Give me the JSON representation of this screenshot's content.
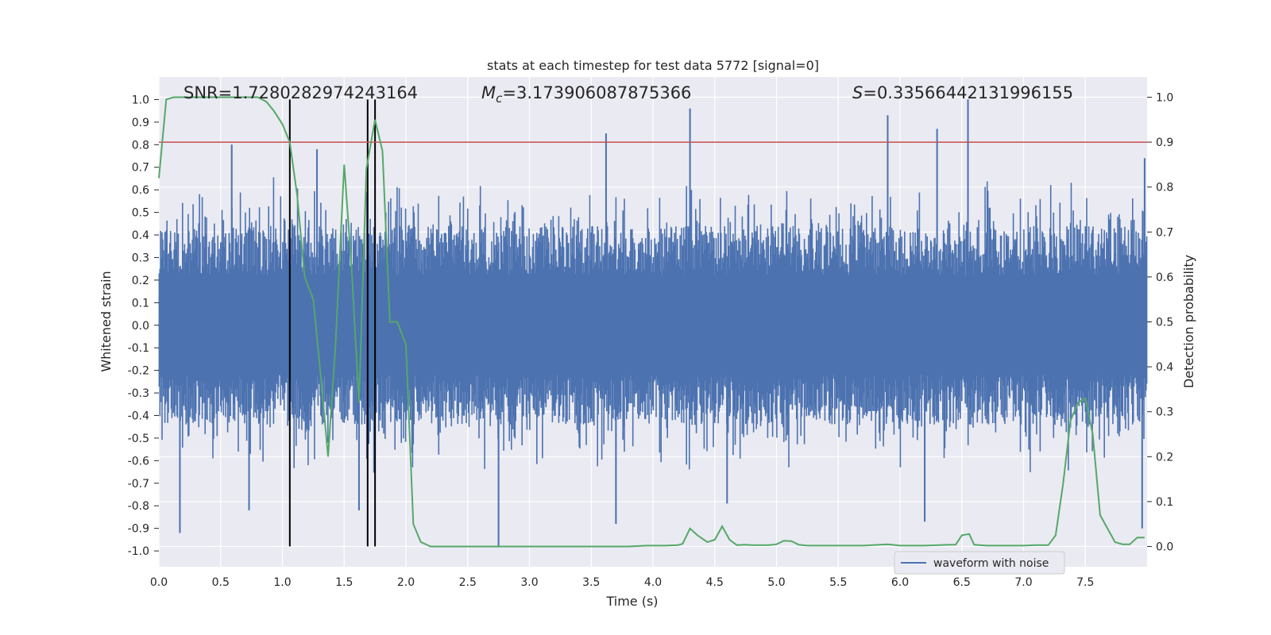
{
  "chart_data": {
    "type": "line",
    "title": "stats at each timestep for test data 5772 [signal=0]",
    "xlabel": "Time (s)",
    "ylabel_left": "Whitened strain",
    "ylabel_right": "Detection probability",
    "xlim": [
      0.0,
      8.0
    ],
    "ylim_left": [
      -1.07,
      1.1
    ],
    "ylim_right": [
      -0.045,
      1.045
    ],
    "xticks": [
      "0.0",
      "0.5",
      "1.0",
      "1.5",
      "2.0",
      "2.5",
      "3.0",
      "3.5",
      "4.0",
      "4.5",
      "5.0",
      "5.5",
      "6.0",
      "6.5",
      "7.0",
      "7.5"
    ],
    "yticks_left": [
      "1.0",
      "0.9",
      "0.8",
      "0.7",
      "0.6",
      "0.5",
      "0.4",
      "0.3",
      "0.2",
      "0.1",
      "0.0",
      "-0.1",
      "-0.2",
      "-0.3",
      "-0.4",
      "-0.5",
      "-0.6",
      "-0.7",
      "-0.8",
      "-0.9",
      "-1.0"
    ],
    "yticks_right": [
      "1.0",
      "0.9",
      "0.8",
      "0.7",
      "0.6",
      "0.5",
      "0.4",
      "0.3",
      "0.2",
      "0.1",
      "0.0"
    ],
    "annotations": {
      "snr": "SNR=1.7280282974243164",
      "mc_symbol": "M",
      "mc_sub": "c",
      "mc_value": "=3.173906087875366",
      "s_symbol": "S",
      "s_value": "=0.33566442131996155"
    },
    "threshold": {
      "value_right": 0.9,
      "color": "#c44e52"
    },
    "vertical_markers": [
      1.06,
      1.69,
      1.75
    ],
    "legend": {
      "label": "waveform with noise",
      "position": "lower-center-right"
    },
    "series": [
      {
        "name": "waveform with noise",
        "axis": "left",
        "color": "#4c72b0",
        "style": "dense noise, envelope roughly ±0.4 to ±0.6 with peaks",
        "peaks": [
          {
            "x": 0.17,
            "y": -0.92
          },
          {
            "x": 0.59,
            "y": 0.8
          },
          {
            "x": 0.73,
            "y": -0.82
          },
          {
            "x": 1.28,
            "y": 0.78
          },
          {
            "x": 1.62,
            "y": -0.82
          },
          {
            "x": 2.75,
            "y": -0.98
          },
          {
            "x": 3.62,
            "y": 0.85
          },
          {
            "x": 3.7,
            "y": -0.88
          },
          {
            "x": 4.3,
            "y": 0.96
          },
          {
            "x": 4.6,
            "y": -0.79
          },
          {
            "x": 5.9,
            "y": 0.93
          },
          {
            "x": 6.3,
            "y": 0.87
          },
          {
            "x": 6.2,
            "y": -0.87
          },
          {
            "x": 6.55,
            "y": 1.0
          },
          {
            "x": 7.98,
            "y": 0.74
          },
          {
            "x": 7.96,
            "y": -0.9
          }
        ]
      },
      {
        "name": "detection probability",
        "axis": "right",
        "color": "#55a868",
        "x": [
          0.0,
          0.06,
          0.12,
          0.2,
          0.3,
          0.4,
          0.5,
          0.6,
          0.7,
          0.8,
          0.87,
          0.93,
          1.0,
          1.06,
          1.12,
          1.18,
          1.25,
          1.31,
          1.37,
          1.43,
          1.5,
          1.56,
          1.62,
          1.68,
          1.75,
          1.81,
          1.87,
          1.93,
          2.0,
          2.06,
          2.12,
          2.2,
          2.4,
          2.6,
          2.8,
          3.0,
          3.2,
          3.4,
          3.5,
          3.6,
          3.8,
          3.95,
          4.1,
          4.2,
          4.24,
          4.3,
          4.36,
          4.44,
          4.5,
          4.56,
          4.62,
          4.68,
          4.74,
          4.8,
          4.86,
          4.94,
          5.0,
          5.06,
          5.12,
          5.18,
          5.25,
          5.35,
          5.45,
          5.55,
          5.7,
          5.9,
          6.0,
          6.2,
          6.4,
          6.45,
          6.5,
          6.56,
          6.6,
          6.7,
          6.8,
          6.9,
          7.0,
          7.1,
          7.2,
          7.26,
          7.32,
          7.38,
          7.44,
          7.5,
          7.56,
          7.62,
          7.68,
          7.74,
          7.8,
          7.86,
          7.92,
          7.98
        ],
        "y": [
          0.82,
          0.995,
          1.0,
          1.0,
          1.0,
          1.0,
          1.0,
          1.0,
          1.0,
          1.0,
          0.99,
          0.97,
          0.94,
          0.9,
          0.78,
          0.6,
          0.55,
          0.38,
          0.2,
          0.45,
          0.85,
          0.62,
          0.32,
          0.84,
          0.95,
          0.88,
          0.5,
          0.5,
          0.45,
          0.05,
          0.01,
          0.0,
          0.0,
          0.0,
          0.0,
          0.0,
          0.0,
          0.0,
          0.0,
          0.0,
          0.0,
          0.002,
          0.002,
          0.003,
          0.006,
          0.04,
          0.025,
          0.01,
          0.015,
          0.045,
          0.015,
          0.003,
          0.004,
          0.003,
          0.003,
          0.003,
          0.005,
          0.013,
          0.012,
          0.004,
          0.002,
          0.002,
          0.002,
          0.002,
          0.002,
          0.005,
          0.002,
          0.002,
          0.004,
          0.004,
          0.025,
          0.028,
          0.004,
          0.002,
          0.002,
          0.002,
          0.002,
          0.003,
          0.003,
          0.025,
          0.14,
          0.28,
          0.32,
          0.33,
          0.25,
          0.07,
          0.04,
          0.01,
          0.005,
          0.005,
          0.02,
          0.02
        ]
      }
    ]
  }
}
